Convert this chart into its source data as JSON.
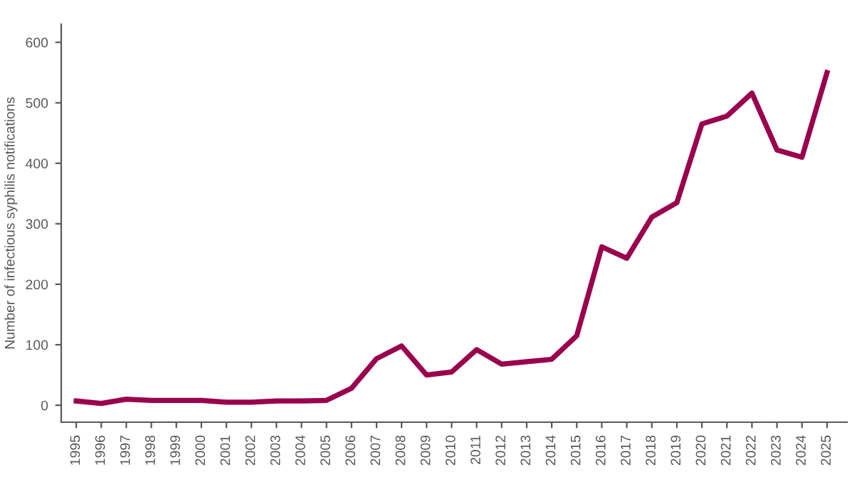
{
  "chart_data": {
    "type": "line",
    "ylabel": "Number of infectious syphilis notifications",
    "categories": [
      "1995",
      "1996",
      "1997",
      "1998",
      "1999",
      "2000",
      "2001",
      "2002",
      "2003",
      "2004",
      "2005",
      "2006",
      "2007",
      "2008",
      "2009",
      "2010",
      "2011",
      "2012",
      "2013",
      "2014",
      "2015",
      "2016",
      "2017",
      "2018",
      "2019",
      "2020",
      "2021",
      "2022",
      "2023",
      "2024",
      "2025"
    ],
    "series": [
      {
        "color": "#99004d",
        "values": [
          7,
          3,
          10,
          8,
          8,
          8,
          5,
          5,
          7,
          7,
          8,
          28,
          77,
          98,
          50,
          55,
          92,
          68,
          72,
          76,
          115,
          262,
          243,
          311,
          335,
          465,
          478,
          516,
          422,
          410,
          550
        ]
      }
    ],
    "ylim": [
      -28,
      630
    ],
    "yticks": [
      0,
      100,
      200,
      300,
      400,
      500,
      600
    ],
    "grid": false,
    "legend": false,
    "marker": "none",
    "line_style": "solid"
  }
}
